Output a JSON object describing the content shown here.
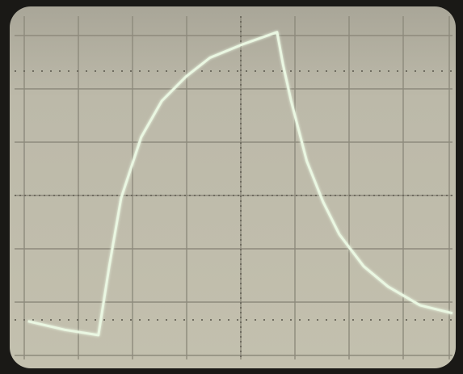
{
  "chart_data": {
    "type": "line",
    "x": [
      0.07,
      0.75,
      1.37,
      1.57,
      1.79,
      2.16,
      2.54,
      2.99,
      3.43,
      4.03,
      4.67,
      4.78,
      4.93,
      5.22,
      5.52,
      5.82,
      6.27,
      6.72,
      7.31,
      7.91
    ],
    "values": [
      0.64,
      0.48,
      0.38,
      1.67,
      2.95,
      4.09,
      4.77,
      5.23,
      5.58,
      5.83,
      6.06,
      5.45,
      4.77,
      3.64,
      2.88,
      2.27,
      1.67,
      1.29,
      0.94,
      0.79
    ],
    "color": "#eaf7e2",
    "xlim": [
      0,
      8
    ],
    "ylim": [
      0,
      6.3
    ]
  }
}
